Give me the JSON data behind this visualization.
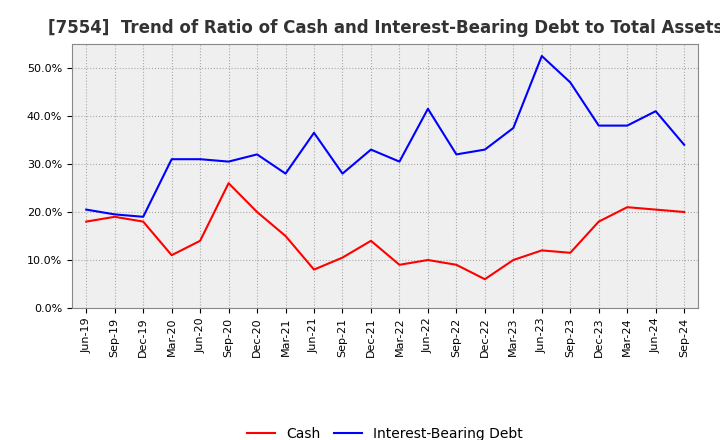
{
  "title": "[7554]  Trend of Ratio of Cash and Interest-Bearing Debt to Total Assets",
  "x_labels": [
    "Jun-19",
    "Sep-19",
    "Dec-19",
    "Mar-20",
    "Jun-20",
    "Sep-20",
    "Dec-20",
    "Mar-21",
    "Jun-21",
    "Sep-21",
    "Dec-21",
    "Mar-22",
    "Jun-22",
    "Sep-22",
    "Dec-22",
    "Mar-23",
    "Jun-23",
    "Sep-23",
    "Dec-23",
    "Mar-24",
    "Jun-24",
    "Sep-24"
  ],
  "cash": [
    18.0,
    19.0,
    18.0,
    11.0,
    14.0,
    26.0,
    20.0,
    15.0,
    8.0,
    10.5,
    14.0,
    9.0,
    10.0,
    9.0,
    6.0,
    10.0,
    12.0,
    11.5,
    18.0,
    21.0,
    20.5,
    20.0
  ],
  "debt": [
    20.5,
    19.5,
    19.0,
    31.0,
    31.0,
    30.5,
    32.0,
    28.0,
    36.5,
    28.0,
    33.0,
    30.5,
    41.5,
    32.0,
    33.0,
    37.5,
    52.5,
    47.0,
    38.0,
    38.0,
    41.0,
    34.0
  ],
  "cash_color": "#ff0000",
  "debt_color": "#0000ff",
  "background_color": "#ffffff",
  "plot_background": "#efefef",
  "grid_color": "#aaaaaa",
  "ylim": [
    0,
    55
  ],
  "yticks": [
    0,
    10,
    20,
    30,
    40,
    50
  ],
  "title_fontsize": 12,
  "tick_fontsize": 8,
  "legend_labels": [
    "Cash",
    "Interest-Bearing Debt"
  ]
}
